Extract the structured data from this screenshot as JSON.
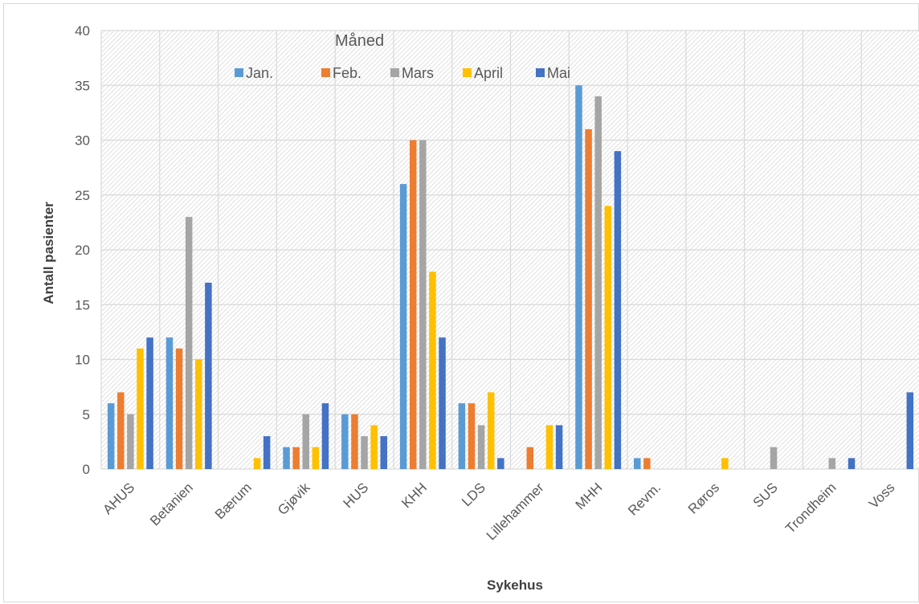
{
  "chart_data": {
    "type": "bar",
    "legend_title": "Måned",
    "legend_position": "top-center",
    "xlabel": "Sykehus",
    "ylabel": "Antall pasienter",
    "ylim": [
      0,
      40
    ],
    "ytick_step": 5,
    "grid": true,
    "categories": [
      "AHUS",
      "Betanien",
      "Bærum",
      "Gjøvik",
      "HUS",
      "KHH",
      "LDS",
      "Lillehammer",
      "MHH",
      "Revm.",
      "Røros",
      "SUS",
      "Trondheim",
      "Voss"
    ],
    "series": [
      {
        "name": "Jan.",
        "color": "#5B9BD5",
        "values": [
          6,
          12,
          0,
          2,
          5,
          26,
          6,
          0,
          35,
          1,
          0,
          0,
          0,
          0
        ]
      },
      {
        "name": "Feb.",
        "color": "#ED7D31",
        "values": [
          7,
          11,
          0,
          2,
          5,
          30,
          6,
          2,
          31,
          1,
          0,
          0,
          0,
          0
        ]
      },
      {
        "name": "Mars",
        "color": "#A5A5A5",
        "values": [
          5,
          23,
          0,
          5,
          3,
          30,
          4,
          0,
          34,
          0,
          0,
          2,
          1,
          0
        ]
      },
      {
        "name": "April",
        "color": "#FFC000",
        "values": [
          11,
          10,
          1,
          2,
          4,
          18,
          7,
          4,
          24,
          0,
          1,
          0,
          0,
          0
        ]
      },
      {
        "name": "Mai",
        "color": "#4472C4",
        "values": [
          12,
          17,
          3,
          6,
          3,
          12,
          1,
          4,
          29,
          0,
          0,
          0,
          1,
          7
        ]
      }
    ]
  }
}
